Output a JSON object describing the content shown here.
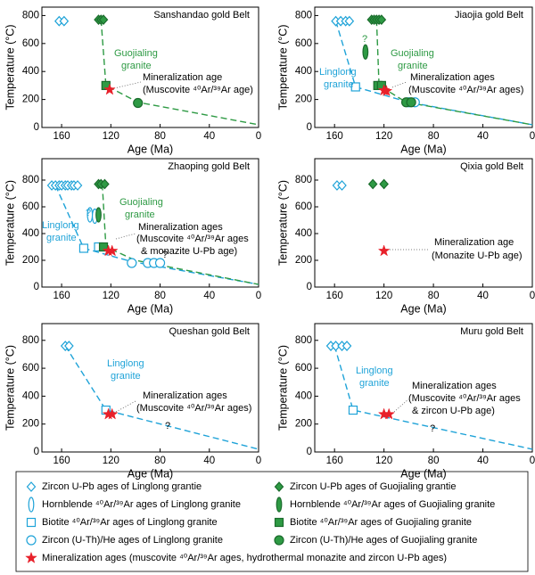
{
  "chart_data": [
    {
      "type": "scatter",
      "title": "Sanshandao gold Belt",
      "xlabel": "Age (Ma)",
      "ylabel": "Temperature (°C)",
      "xlim": [
        176,
        0
      ],
      "ylim": [
        0,
        860
      ],
      "xticks": [
        160,
        120,
        80,
        40,
        0
      ],
      "yticks": [
        0,
        200,
        400,
        600,
        800
      ],
      "series": [
        {
          "marker": "diamond-open",
          "color": "#1fa3d8",
          "x": [
            162,
            158
          ],
          "values": [
            760,
            760
          ]
        },
        {
          "marker": "diamond-filled",
          "color": "#2e9a44",
          "x": [
            130,
            128,
            126
          ],
          "values": [
            770,
            770,
            770
          ]
        },
        {
          "marker": "square-filled",
          "color": "#2e9a44",
          "x": [
            124
          ],
          "values": [
            300
          ]
        },
        {
          "marker": "circle-filled",
          "color": "#2e9a44",
          "x": [
            98
          ],
          "values": [
            175
          ]
        },
        {
          "marker": "star",
          "color": "#e8202a",
          "x": [
            121
          ],
          "values": [
            270
          ]
        }
      ],
      "lines": [
        {
          "color": "#2e9a44",
          "x": [
            128,
            124,
            98,
            0
          ],
          "values": [
            770,
            300,
            180,
            20
          ]
        }
      ],
      "annotations": [
        {
          "text": "Guojialing",
          "color": "#2e9a44"
        },
        {
          "text": "granite",
          "color": "#2e9a44"
        },
        {
          "text": "Mineralization age",
          "color": "#000000"
        },
        {
          "text": "(Muscovite ⁴⁰Ar/³⁹Ar age)",
          "color": "#000000"
        }
      ]
    },
    {
      "type": "scatter",
      "title": "Jiaojia gold Belt",
      "xlabel": "Age (Ma)",
      "ylabel": "Temperature (°C)",
      "xlim": [
        176,
        0
      ],
      "ylim": [
        0,
        860
      ],
      "xticks": [
        160,
        120,
        80,
        40,
        0
      ],
      "yticks": [
        0,
        200,
        400,
        600,
        800
      ],
      "series": [
        {
          "marker": "diamond-open",
          "color": "#1fa3d8",
          "x": [
            159,
            155,
            151,
            148
          ],
          "values": [
            760,
            760,
            760,
            760
          ]
        },
        {
          "marker": "diamond-filled",
          "color": "#2e9a44",
          "x": [
            130,
            128,
            126,
            124,
            122
          ],
          "values": [
            770,
            770,
            770,
            770,
            770
          ]
        },
        {
          "marker": "ellipse-filled",
          "color": "#2e9a44",
          "x": [
            135
          ],
          "values": [
            540
          ]
        },
        {
          "marker": "square-open",
          "color": "#1fa3d8",
          "x": [
            143
          ],
          "values": [
            290
          ]
        },
        {
          "marker": "square-filled",
          "color": "#2e9a44",
          "x": [
            125,
            122
          ],
          "values": [
            300,
            300
          ]
        },
        {
          "marker": "circle-open",
          "color": "#1fa3d8",
          "x": [
            100,
            95
          ],
          "values": [
            180,
            180
          ]
        },
        {
          "marker": "circle-filled",
          "color": "#2e9a44",
          "x": [
            102,
            98
          ],
          "values": [
            180,
            180
          ]
        },
        {
          "marker": "star",
          "color": "#e8202a",
          "x": [
            120,
            118
          ],
          "values": [
            265,
            260
          ]
        }
      ],
      "lines": [
        {
          "color": "#1fa3d8",
          "x": [
            159,
            143,
            100,
            0
          ],
          "values": [
            760,
            290,
            180,
            20
          ]
        },
        {
          "color": "#2e9a44",
          "x": [
            126,
            124,
            102,
            0
          ],
          "values": [
            770,
            300,
            180,
            20
          ]
        }
      ],
      "annotations": [
        {
          "text": "Guojialing",
          "color": "#2e9a44"
        },
        {
          "text": "granite",
          "color": "#2e9a44"
        },
        {
          "text": "Linglong",
          "color": "#1fa3d8"
        },
        {
          "text": "granite",
          "color": "#1fa3d8"
        },
        {
          "text": "?",
          "color": "#2e9a44"
        },
        {
          "text": "Mineralization ages",
          "color": "#000000"
        },
        {
          "text": "(Muscovite ⁴⁰Ar/³⁹Ar ages)",
          "color": "#000000"
        }
      ]
    },
    {
      "type": "scatter",
      "title": "Zhaoping gold Belt",
      "xlabel": "Age (Ma)",
      "ylabel": "Temperature (°C)",
      "xlim": [
        176,
        0
      ],
      "ylim": [
        0,
        960
      ],
      "xticks": [
        160,
        120,
        80,
        40,
        0
      ],
      "yticks": [
        0,
        200,
        400,
        600,
        800
      ],
      "series": [
        {
          "marker": "diamond-open",
          "color": "#1fa3d8",
          "x": [
            168,
            165,
            162,
            160,
            157,
            155,
            152,
            150,
            147
          ],
          "values": [
            760,
            760,
            760,
            760,
            760,
            760,
            760,
            760,
            760
          ]
        },
        {
          "marker": "diamond-filled",
          "color": "#2e9a44",
          "x": [
            130,
            128,
            125
          ],
          "values": [
            770,
            770,
            770
          ]
        },
        {
          "marker": "ellipse-open",
          "color": "#1fa3d8",
          "x": [
            137,
            133
          ],
          "values": [
            540,
            530
          ]
        },
        {
          "marker": "ellipse-filled",
          "color": "#2e9a44",
          "x": [
            130
          ],
          "values": [
            540
          ]
        },
        {
          "marker": "square-open",
          "color": "#1fa3d8",
          "x": [
            142,
            130
          ],
          "values": [
            290,
            300
          ]
        },
        {
          "marker": "square-filled",
          "color": "#2e9a44",
          "x": [
            126
          ],
          "values": [
            300
          ]
        },
        {
          "marker": "circle-open",
          "color": "#1fa3d8",
          "x": [
            103,
            90,
            85,
            80
          ],
          "values": [
            180,
            180,
            180,
            180
          ]
        },
        {
          "marker": "star",
          "color": "#e8202a",
          "x": [
            122,
            119
          ],
          "values": [
            270,
            270
          ]
        }
      ],
      "lines": [
        {
          "color": "#1fa3d8",
          "x": [
            165,
            142,
            103,
            0
          ],
          "values": [
            760,
            290,
            190,
            20
          ]
        },
        {
          "color": "#2e9a44",
          "x": [
            127,
            124,
            100,
            0
          ],
          "values": [
            770,
            300,
            200,
            20
          ]
        }
      ],
      "annotations": [
        {
          "text": "Guojialing",
          "color": "#2e9a44"
        },
        {
          "text": "granite",
          "color": "#2e9a44"
        },
        {
          "text": "Linglong",
          "color": "#1fa3d8"
        },
        {
          "text": "granite",
          "color": "#1fa3d8"
        },
        {
          "text": "?",
          "color": "#1fa3d8"
        },
        {
          "text": "Mineralization ages",
          "color": "#000000"
        },
        {
          "text": "(Muscovite ⁴⁰Ar/³⁹Ar ages",
          "color": "#000000"
        },
        {
          "text": "& monazite U-Pb age)",
          "color": "#000000"
        },
        {
          "text": "?",
          "color": "#000000"
        }
      ]
    },
    {
      "type": "scatter",
      "title": "Qixia gold Belt",
      "xlabel": "Age (Ma)",
      "ylabel": "Temperature (°C)",
      "xlim": [
        176,
        0
      ],
      "ylim": [
        0,
        960
      ],
      "xticks": [
        160,
        120,
        80,
        40,
        0
      ],
      "yticks": [
        0,
        200,
        400,
        600,
        800
      ],
      "series": [
        {
          "marker": "diamond-open",
          "color": "#1fa3d8",
          "x": [
            158,
            154
          ],
          "values": [
            760,
            760
          ]
        },
        {
          "marker": "diamond-filled",
          "color": "#2e9a44",
          "x": [
            129,
            120
          ],
          "values": [
            770,
            770
          ]
        },
        {
          "marker": "star",
          "color": "#e8202a",
          "x": [
            120
          ],
          "values": [
            270
          ]
        }
      ],
      "lines": [],
      "annotations": [
        {
          "text": "Mineralization age",
          "color": "#000000"
        },
        {
          "text": "(Monazite U-Pb age)",
          "color": "#000000"
        }
      ]
    },
    {
      "type": "scatter",
      "title": "Queshan gold Belt",
      "xlabel": "Age (Ma)",
      "ylabel": "Temperature (°C)",
      "xlim": [
        176,
        0
      ],
      "ylim": [
        0,
        920
      ],
      "xticks": [
        160,
        120,
        80,
        40,
        0
      ],
      "yticks": [
        0,
        200,
        400,
        600,
        800
      ],
      "series": [
        {
          "marker": "diamond-open",
          "color": "#1fa3d8",
          "x": [
            157,
            154
          ],
          "values": [
            760,
            760
          ]
        },
        {
          "marker": "square-open",
          "color": "#1fa3d8",
          "x": [
            124
          ],
          "values": [
            300
          ]
        },
        {
          "marker": "star",
          "color": "#e8202a",
          "x": [
            122,
            119
          ],
          "values": [
            270,
            270
          ]
        }
      ],
      "lines": [
        {
          "color": "#1fa3d8",
          "x": [
            157,
            124,
            0
          ],
          "values": [
            760,
            300,
            20
          ]
        }
      ],
      "annotations": [
        {
          "text": "Linglong",
          "color": "#1fa3d8"
        },
        {
          "text": "granite",
          "color": "#1fa3d8"
        },
        {
          "text": "Mineralization ages",
          "color": "#000000"
        },
        {
          "text": "(Muscovite ⁴⁰Ar/³⁹Ar ages)",
          "color": "#000000"
        },
        {
          "text": "?",
          "color": "#000000"
        }
      ]
    },
    {
      "type": "scatter",
      "title": "Muru gold Belt",
      "xlabel": "Age (Ma)",
      "ylabel": "Temperature (°C)",
      "xlim": [
        176,
        0
      ],
      "ylim": [
        0,
        920
      ],
      "xticks": [
        160,
        120,
        80,
        40,
        0
      ],
      "yticks": [
        0,
        200,
        400,
        600,
        800
      ],
      "series": [
        {
          "marker": "diamond-open",
          "color": "#1fa3d8",
          "x": [
            163,
            159,
            154,
            150
          ],
          "values": [
            760,
            760,
            760,
            760
          ]
        },
        {
          "marker": "square-open",
          "color": "#1fa3d8",
          "x": [
            145
          ],
          "values": [
            300
          ]
        },
        {
          "marker": "star",
          "color": "#e8202a",
          "x": [
            120,
            116
          ],
          "values": [
            270,
            270
          ]
        }
      ],
      "lines": [
        {
          "color": "#1fa3d8",
          "x": [
            160,
            145,
            0
          ],
          "values": [
            760,
            300,
            20
          ]
        }
      ],
      "annotations": [
        {
          "text": "Linglong",
          "color": "#1fa3d8"
        },
        {
          "text": "granite",
          "color": "#1fa3d8"
        },
        {
          "text": "Mineralization ages",
          "color": "#000000"
        },
        {
          "text": "(Muscovite ⁴⁰Ar/³⁹Ar ages",
          "color": "#000000"
        },
        {
          "text": "& zircon U-Pb age)",
          "color": "#000000"
        },
        {
          "text": "?",
          "color": "#000000"
        }
      ]
    }
  ],
  "legend": {
    "items": [
      {
        "label": "Zircon U-Pb ages of Linglong grantie",
        "marker": "diamond-open",
        "color": "#1fa3d8"
      },
      {
        "label": "Zircon U-Pb ages of Guojialing grantie",
        "marker": "diamond-filled",
        "color": "#2e9a44"
      },
      {
        "label": "Hornblende ⁴⁰Ar/³⁹Ar ages of Linglong granite",
        "marker": "ellipse-open",
        "color": "#1fa3d8"
      },
      {
        "label": "Hornblende ⁴⁰Ar/³⁹Ar ages of Guojialing granite",
        "marker": "ellipse-filled",
        "color": "#2e9a44"
      },
      {
        "label": "Biotite ⁴⁰Ar/³⁹Ar ages of Linglong granite",
        "marker": "square-open",
        "color": "#1fa3d8"
      },
      {
        "label": "Biotite ⁴⁰Ar/³⁹Ar ages of Guojialing granite",
        "marker": "square-filled",
        "color": "#2e9a44"
      },
      {
        "label": "Zircon (U-Th)/He ages of Linglong granite",
        "marker": "circle-open",
        "color": "#1fa3d8"
      },
      {
        "label": "Zircon (U-Th)/He ages of Guojialing granite",
        "marker": "circle-filled",
        "color": "#2e9a44"
      },
      {
        "label": "Mineralization ages (muscovite ⁴⁰Ar/³⁹Ar ages, hydrothermal monazite and zircon U-Pb ages)",
        "marker": "star",
        "color": "#e8202a"
      }
    ]
  }
}
